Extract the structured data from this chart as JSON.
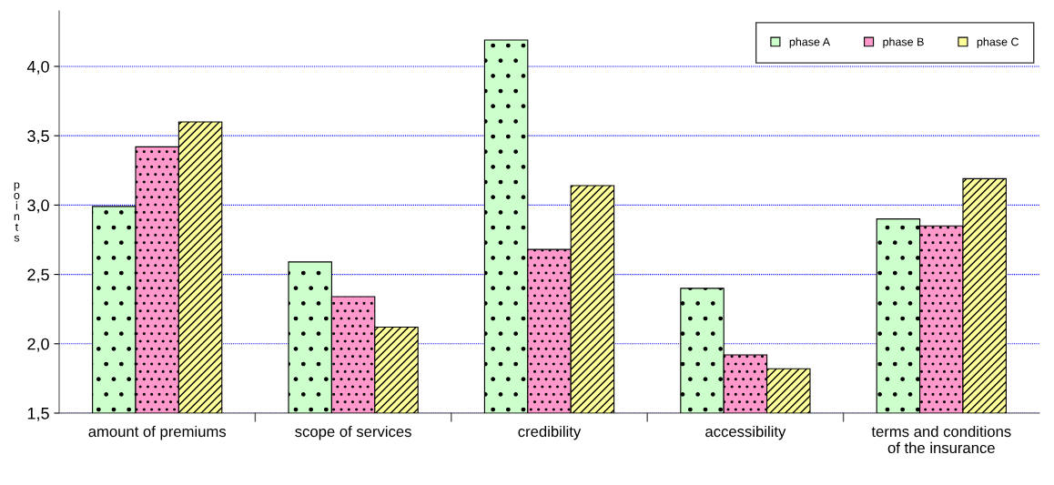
{
  "chart_data": {
    "type": "bar",
    "ylabel": "points",
    "categories": [
      "amount of premiums",
      "scope of services",
      "credibility",
      "accessibility",
      "terms and conditions\nof the insurance"
    ],
    "series": [
      {
        "name": "phase A",
        "color": "#ccffcc",
        "values": [
          2.99,
          2.59,
          4.19,
          2.4,
          2.9
        ]
      },
      {
        "name": "phase B",
        "color": "#ff99cc",
        "values": [
          3.42,
          2.34,
          2.68,
          1.92,
          2.85
        ]
      },
      {
        "name": "phase C",
        "color": "#ffff99",
        "values": [
          3.6,
          2.12,
          3.14,
          1.82,
          3.19
        ]
      }
    ],
    "ylim": [
      1.5,
      4.4
    ],
    "yticks": [
      {
        "value": 1.5,
        "label": "1,5"
      },
      {
        "value": 2.0,
        "label": "2,0"
      },
      {
        "value": 2.5,
        "label": "2,5"
      },
      {
        "value": 3.0,
        "label": "3,0"
      },
      {
        "value": 3.5,
        "label": "3,5"
      },
      {
        "value": 4.0,
        "label": "4,0"
      }
    ],
    "grid": "y",
    "legend": "top right"
  }
}
